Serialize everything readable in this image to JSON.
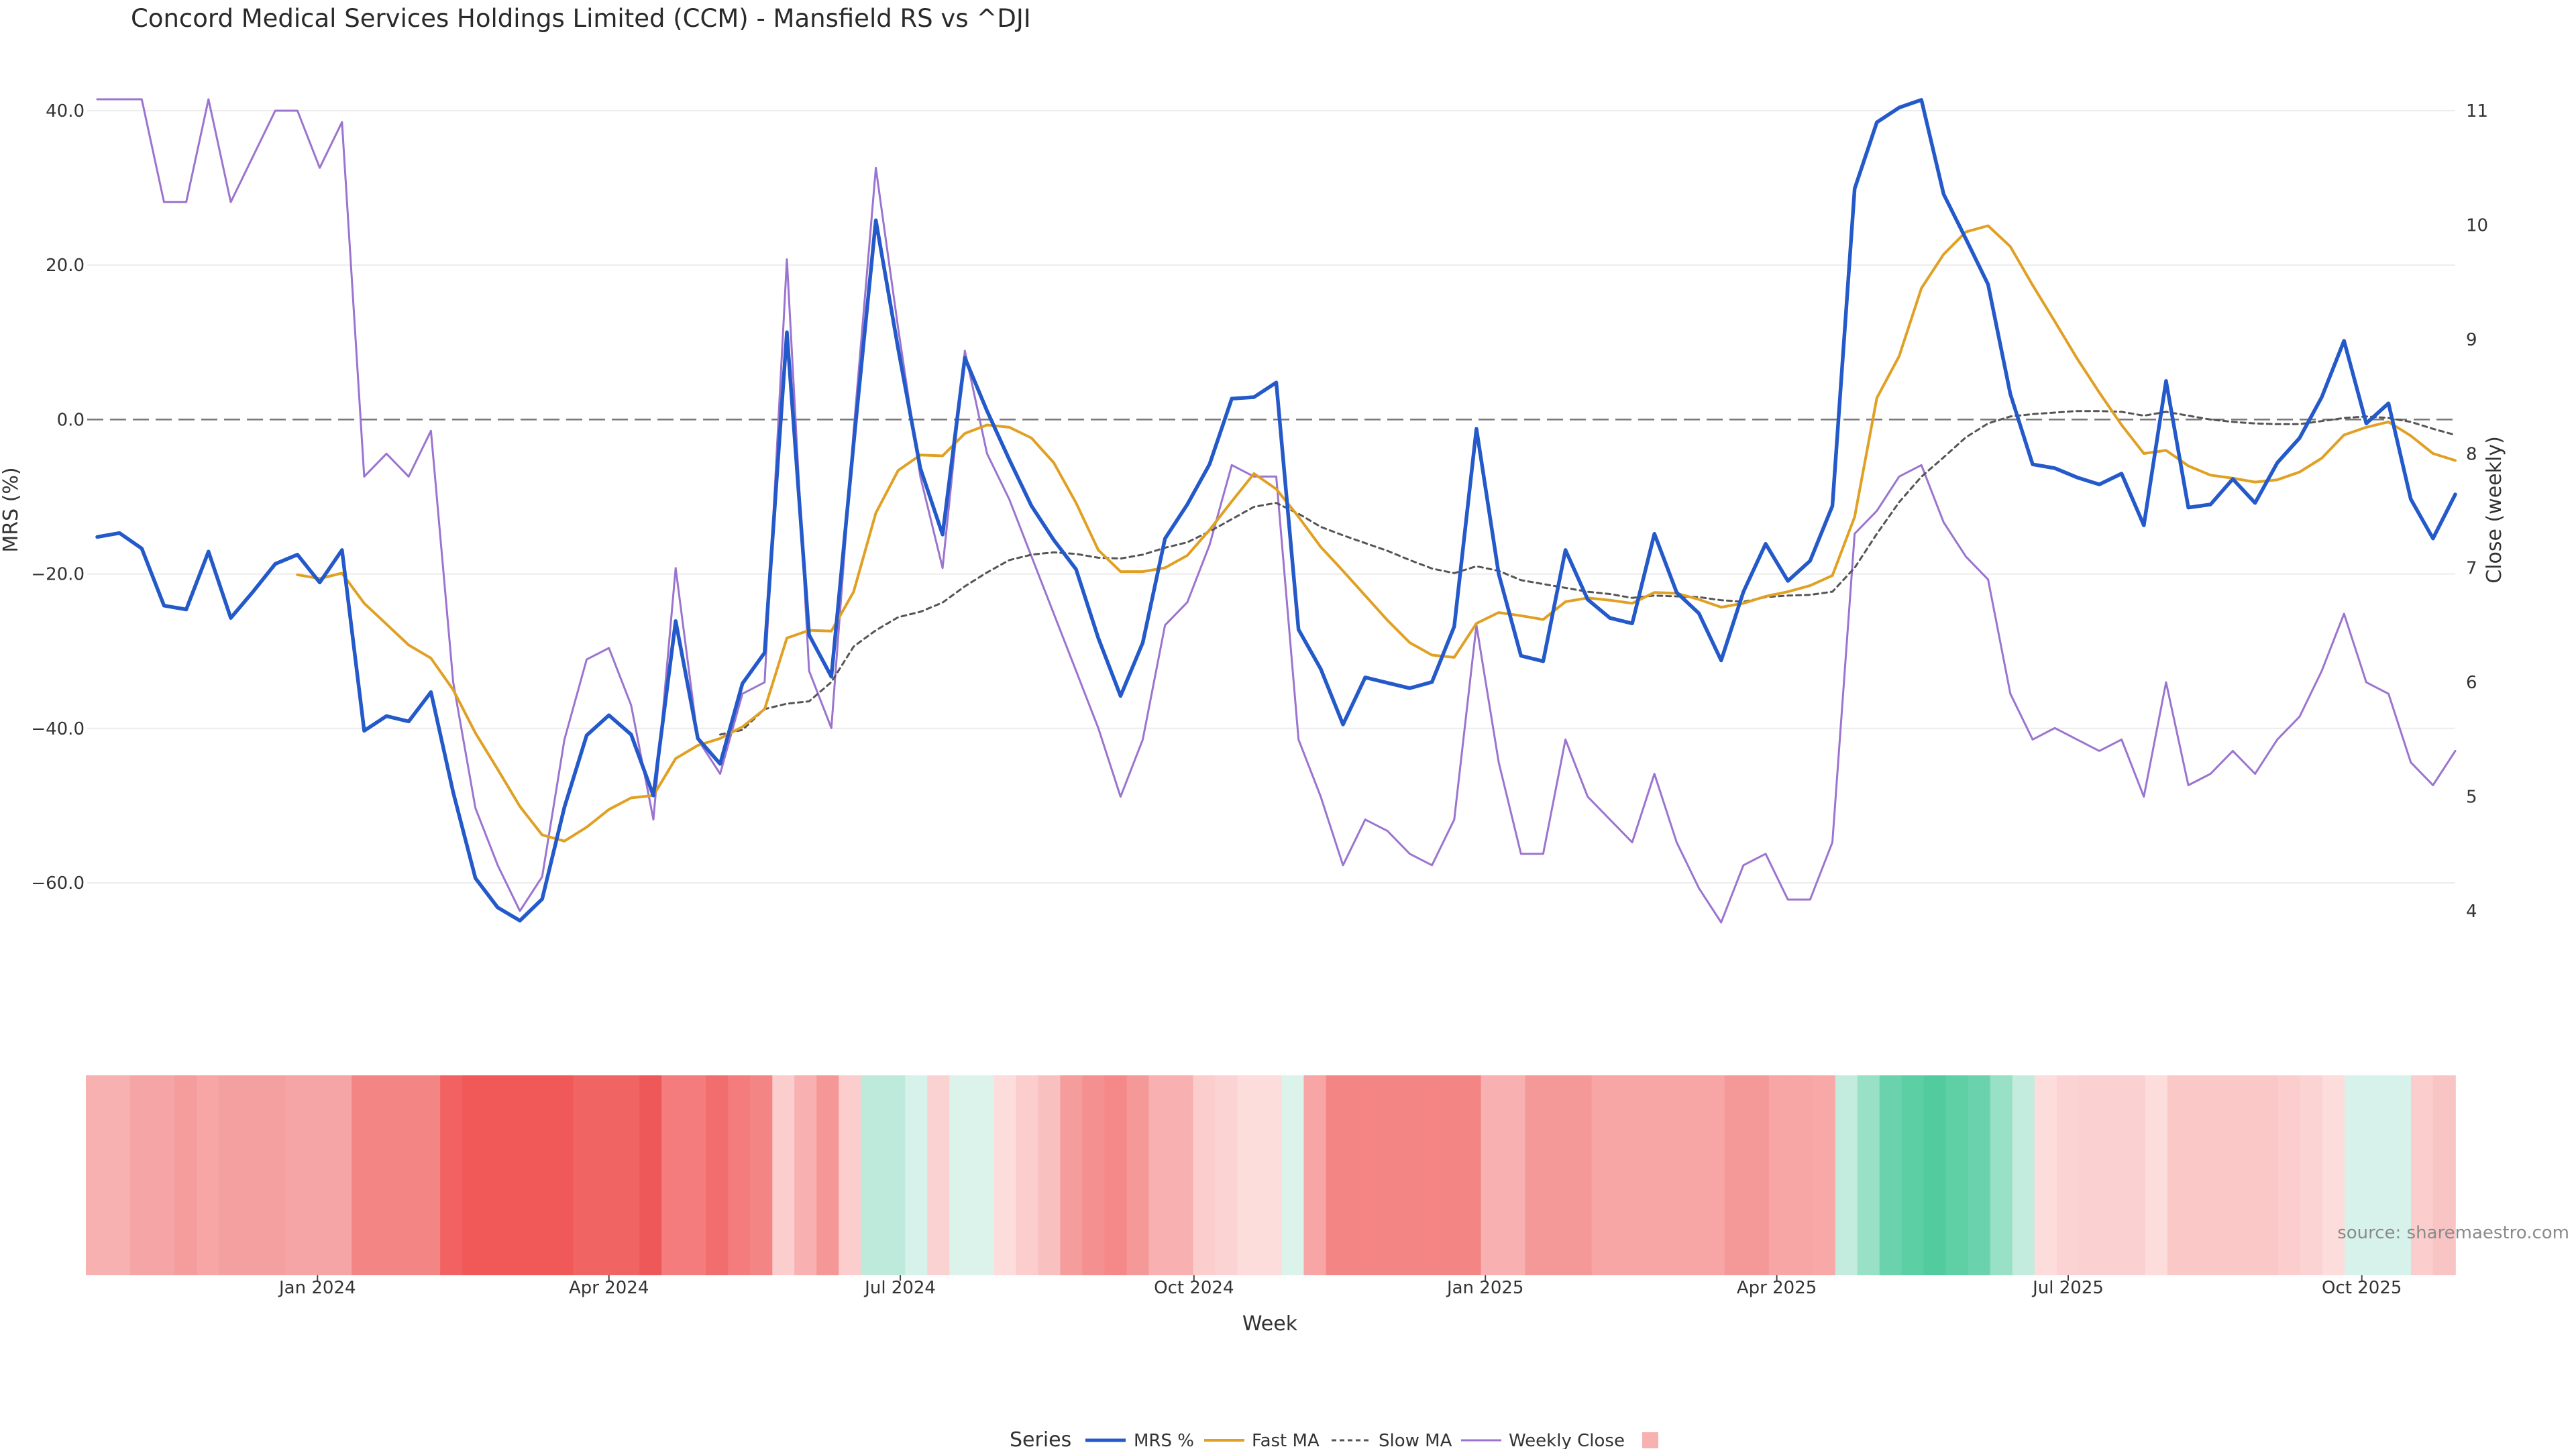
{
  "chart_data": {
    "type": "line",
    "title": "Concord Medical Services Holdings Limited (CCM) - Mansfield RS vs ^DJI",
    "xlabel": "Week",
    "ylabel_left": "MRS (%)",
    "ylabel_right": "Close (weekly)",
    "ylim_left": [
      -75,
      45
    ],
    "ylim_right": [
      3.6,
      11.3
    ],
    "left_ticks": [
      "40.0",
      "20.0",
      "0.0",
      "−20.0",
      "−40.0",
      "−60.0"
    ],
    "left_tick_values": [
      40,
      20,
      0,
      -20,
      -40,
      -60
    ],
    "right_ticks": [
      "11",
      "10",
      "9",
      "8",
      "7",
      "6",
      "5",
      "4"
    ],
    "right_tick_values": [
      11,
      10,
      9,
      8,
      7,
      6,
      5,
      4
    ],
    "x_tick_labels": [
      "Jan 2024",
      "Apr 2024",
      "Jul 2024",
      "Oct 2024",
      "Jan 2025",
      "Apr 2025",
      "Jul 2025",
      "Oct 2025"
    ],
    "x_tick_weeks": [
      9.9,
      23,
      36.1,
      49.3,
      62.4,
      75.5,
      88.6,
      101.8
    ],
    "reference_line": 0,
    "grid": true,
    "legend": {
      "title": "Series",
      "placement": "bottom-center",
      "entries": [
        "MRS %",
        "Fast MA",
        "Slow MA",
        "Weekly Close",
        ""
      ]
    },
    "source": "source: sharemaestro.com",
    "colors": {
      "mrs": "#2459c9",
      "fast_ma": "#e0a023",
      "slow_ma": "#555555",
      "close": "#9b74cf",
      "zero_line": "#777777"
    },
    "series": [
      {
        "name": "MRS %",
        "values": [
          -15.2,
          -14.7,
          -16.7,
          -24.1,
          -24.6,
          -17.1,
          -25.7,
          -22.3,
          -18.7,
          -17.5,
          -21.1,
          -16.9,
          -40.3,
          -38.4,
          -39.1,
          -35.3,
          -48.3,
          -59.4,
          -63.2,
          -64.9,
          -62.1,
          -50.2,
          -40.9,
          -38.3,
          -40.8,
          -48.7,
          -26.1,
          -41.3,
          -44.6,
          -34.2,
          -30.2,
          11.3,
          -27.9,
          -33.3,
          -3.1,
          25.8,
          9.2,
          -6.3,
          -14.9,
          8.0,
          1.1,
          -5.2,
          -11.2,
          -15.6,
          -19.4,
          -28.3,
          -35.8,
          -28.9,
          -15.4,
          -11.0,
          -5.8,
          2.7,
          2.9,
          4.8,
          -27.2,
          -32.3,
          -39.5,
          -33.4,
          -34.1,
          -34.8,
          -34.0,
          -26.8,
          -1.2,
          -20.0,
          -30.6,
          -31.3,
          -16.9,
          -23.3,
          -25.7,
          -26.4,
          -14.8,
          -22.4,
          -25.1,
          -31.2,
          -22.3,
          -16.1,
          -20.9,
          -18.3,
          -11.2,
          29.9,
          38.5,
          40.4,
          41.4,
          29.2,
          23.4,
          17.5,
          3.3,
          -5.8,
          -6.3,
          -7.5,
          -8.4,
          -7.0,
          -13.7,
          5.0,
          -11.4,
          -11.0,
          -7.7,
          -10.8,
          -5.6,
          -2.4,
          2.9,
          10.2,
          -0.5,
          2.1,
          -10.3,
          -15.4,
          -9.7
        ]
      },
      {
        "name": "Fast MA",
        "values": [
          null,
          null,
          null,
          null,
          null,
          null,
          null,
          null,
          null,
          -20.1,
          -20.6,
          -19.9,
          -23.8,
          -26.5,
          -29.2,
          -30.9,
          -35.0,
          -40.6,
          -45.3,
          -50.1,
          -53.8,
          -54.6,
          -52.8,
          -50.5,
          -49.0,
          -48.7,
          -43.9,
          -42.2,
          -41.3,
          -39.8,
          -37.5,
          -28.3,
          -27.3,
          -27.4,
          -22.3,
          -12.1,
          -6.6,
          -4.6,
          -4.7,
          -1.8,
          -0.7,
          -1.0,
          -2.4,
          -5.6,
          -10.8,
          -16.9,
          -19.7,
          -19.7,
          -19.2,
          -17.6,
          -14.3,
          -10.6,
          -7.0,
          -9.0,
          -12.6,
          -16.5,
          -19.6,
          -22.8,
          -26.0,
          -28.9,
          -30.5,
          -30.8,
          -26.4,
          -25.0,
          -25.4,
          -25.9,
          -23.6,
          -23.1,
          -23.4,
          -23.8,
          -22.4,
          -22.5,
          -23.3,
          -24.3,
          -23.8,
          -22.9,
          -22.3,
          -21.5,
          -20.2,
          -12.6,
          2.8,
          8.2,
          17.0,
          21.4,
          24.3,
          25.1,
          22.4,
          17.4,
          12.7,
          7.9,
          3.5,
          -0.7,
          -4.4,
          -4.0,
          -6.0,
          -7.2,
          -7.6,
          -8.1,
          -7.8,
          -6.8,
          -5.0,
          -2.0,
          -1.0,
          -0.3,
          -2.1,
          -4.4,
          -5.3
        ]
      },
      {
        "name": "Slow MA",
        "values": [
          null,
          null,
          null,
          null,
          null,
          null,
          null,
          null,
          null,
          null,
          null,
          null,
          null,
          null,
          null,
          null,
          null,
          null,
          null,
          null,
          null,
          null,
          null,
          null,
          null,
          null,
          null,
          null,
          -40.8,
          -40.2,
          -37.5,
          -36.8,
          -36.5,
          -34.0,
          -29.4,
          -27.3,
          -25.6,
          -24.9,
          -23.7,
          -21.6,
          -19.8,
          -18.2,
          -17.5,
          -17.2,
          -17.4,
          -17.9,
          -18.0,
          -17.5,
          -16.6,
          -15.9,
          -14.5,
          -12.9,
          -11.3,
          -10.8,
          -12.2,
          -13.9,
          -15.0,
          -16.0,
          -17.0,
          -18.2,
          -19.3,
          -19.9,
          -19.0,
          -19.6,
          -20.8,
          -21.3,
          -21.8,
          -22.3,
          -22.6,
          -23.1,
          -22.8,
          -22.9,
          -23.0,
          -23.4,
          -23.6,
          -23.0,
          -22.8,
          -22.7,
          -22.3,
          -19.2,
          -14.8,
          -10.7,
          -7.4,
          -4.9,
          -2.3,
          -0.5,
          0.4,
          0.7,
          0.9,
          1.1,
          1.1,
          1.0,
          0.5,
          1.0,
          0.5,
          0.0,
          -0.3,
          -0.5,
          -0.6,
          -0.6,
          -0.2,
          0.2,
          0.4,
          0.2,
          -0.3,
          -1.2,
          -2.0
        ]
      },
      {
        "name": "Weekly Close",
        "values": [
          11.1,
          11.1,
          11.1,
          10.2,
          10.2,
          11.1,
          10.2,
          10.6,
          11.0,
          11.0,
          10.5,
          10.9,
          7.8,
          8.0,
          7.8,
          8.2,
          6.0,
          4.9,
          4.4,
          4.0,
          4.3,
          5.5,
          6.2,
          6.3,
          5.8,
          4.8,
          7.0,
          5.5,
          5.2,
          5.9,
          6.0,
          9.7,
          6.1,
          5.6,
          8.2,
          10.5,
          9.1,
          7.8,
          7.0,
          8.9,
          8.0,
          7.6,
          7.1,
          6.6,
          6.1,
          5.6,
          5.0,
          5.5,
          6.5,
          6.7,
          7.2,
          7.9,
          7.8,
          7.8,
          5.5,
          5.0,
          4.4,
          4.8,
          4.7,
          4.5,
          4.4,
          4.8,
          6.5,
          5.3,
          4.5,
          4.5,
          5.5,
          5.0,
          4.8,
          4.6,
          5.2,
          4.6,
          4.2,
          3.9,
          4.4,
          4.5,
          4.1,
          4.1,
          4.6,
          7.3,
          7.5,
          7.8,
          7.9,
          7.4,
          7.1,
          6.9,
          5.9,
          5.5,
          5.6,
          5.5,
          5.4,
          5.5,
          5.0,
          6.0,
          5.1,
          5.2,
          5.4,
          5.2,
          5.5,
          5.7,
          6.1,
          6.6,
          6.0,
          5.9,
          5.3,
          5.1,
          5.4
        ]
      }
    ],
    "heatmap_colors": [
      "#f7b1b1",
      "#f7b1b1",
      "#f5a5a5",
      "#f5a5a5",
      "#f59d9d",
      "#f7a5a5",
      "#f5a0a0",
      "#f5a0a0",
      "#f5a0a0",
      "#f5a5a5",
      "#f5a5a5",
      "#f5a5a5",
      "#f48585",
      "#f48585",
      "#f48585",
      "#f48585",
      "#f26262",
      "#f15858",
      "#f15858",
      "#f15858",
      "#f15858",
      "#f15858",
      "#f16464",
      "#f16464",
      "#f16464",
      "#ef5858",
      "#f47c7c",
      "#f47c7c",
      "#f26e6e",
      "#f47c7c",
      "#f48585",
      "#fbcdcd",
      "#f8b0b0",
      "#f59797",
      "#fbcdcd",
      "#bdeadb",
      "#bdeadb",
      "#d6f2ea",
      "#fad2d2",
      "#dcf3ec",
      "#dcf3ec",
      "#fddcdc",
      "#fbcdcd",
      "#f9c0c0",
      "#f59d9d",
      "#f59090",
      "#f58888",
      "#f59898",
      "#f8b0b0",
      "#f8b0b0",
      "#fbcdcd",
      "#fbd3d3",
      "#fddcdc",
      "#fddcdc",
      "#dcf3ec",
      "#f7a5a5",
      "#f48585",
      "#f48585",
      "#f48585",
      "#f48585",
      "#f48585",
      "#f48585",
      "#f48585",
      "#f8b0b0",
      "#f8b0b0",
      "#f59898",
      "#f59898",
      "#f59898",
      "#f7a5a5",
      "#f7a5a5",
      "#f7a5a5",
      "#f7a5a5",
      "#f7a5a5",
      "#f7a5a5",
      "#f59898",
      "#f59898",
      "#f7a5a5",
      "#f7a5a5",
      "#f9a8a8",
      "#c3ecde",
      "#98e0c6",
      "#6ad3ae",
      "#5ccfa4",
      "#52cc9f",
      "#5fd0a6",
      "#6ad3ae",
      "#98e0c6",
      "#c3ecde",
      "#fddcdc",
      "#fbd3d3",
      "#fad0d0",
      "#fad0d0",
      "#fad0d0",
      "#fddcdc",
      "#fbc8c8",
      "#fbc8c8",
      "#fbc8c8",
      "#fbc8c8",
      "#fbc8c8",
      "#fbcdcd",
      "#fbd3d3",
      "#fddcdc",
      "#d6f2ea",
      "#d6f2ea",
      "#d6f2ea",
      "#fbcdcd",
      "#f8c4c4"
    ]
  }
}
